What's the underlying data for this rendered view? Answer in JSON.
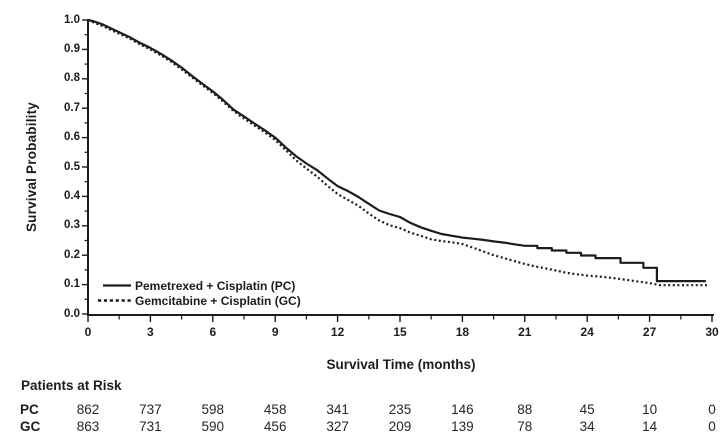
{
  "colors": {
    "ink": "#1c1c1c",
    "background": "#ffffff"
  },
  "chart_data": {
    "type": "line",
    "subtype": "kaplan-meier-survival-curve",
    "title": "",
    "xlabel": "Survival Time (months)",
    "ylabel": "Survival Probability",
    "xlim": [
      0,
      30
    ],
    "ylim": [
      0.0,
      1.0
    ],
    "grid": false,
    "legend_position": "inside-lower-left",
    "x_major_ticks": [
      0,
      3,
      6,
      9,
      12,
      15,
      18,
      21,
      24,
      27,
      30
    ],
    "x_minor_tick_step": 1.5,
    "y_major_tick_labels": [
      "1.0",
      "0.9",
      "0.8",
      "0.7",
      "0.6",
      "0.5",
      "0.4",
      "0.3",
      "0.2",
      "0.1",
      "0.0"
    ],
    "y_minor_tick_step": 0.05,
    "series": [
      {
        "name": "Pemetrexed + Cisplatin (PC)",
        "line_style": "solid",
        "color": "#1c1c1c",
        "points": [
          [
            0,
            1.0
          ],
          [
            0.3,
            0.995
          ],
          [
            0.7,
            0.985
          ],
          [
            1,
            0.975
          ],
          [
            1.5,
            0.958
          ],
          [
            2,
            0.942
          ],
          [
            2.5,
            0.922
          ],
          [
            3,
            0.905
          ],
          [
            3.5,
            0.885
          ],
          [
            4,
            0.863
          ],
          [
            4.5,
            0.838
          ],
          [
            5,
            0.81
          ],
          [
            5.5,
            0.783
          ],
          [
            6,
            0.757
          ],
          [
            6.5,
            0.728
          ],
          [
            7,
            0.695
          ],
          [
            7.5,
            0.672
          ],
          [
            8,
            0.648
          ],
          [
            8.5,
            0.625
          ],
          [
            9,
            0.6
          ],
          [
            9.5,
            0.567
          ],
          [
            10,
            0.537
          ],
          [
            10.5,
            0.512
          ],
          [
            11,
            0.49
          ],
          [
            11.5,
            0.462
          ],
          [
            12,
            0.435
          ],
          [
            12.5,
            0.418
          ],
          [
            13,
            0.398
          ],
          [
            13.5,
            0.375
          ],
          [
            14,
            0.352
          ],
          [
            14.5,
            0.34
          ],
          [
            15,
            0.33
          ],
          [
            15.5,
            0.31
          ],
          [
            16,
            0.295
          ],
          [
            16.5,
            0.283
          ],
          [
            17,
            0.272
          ],
          [
            17.5,
            0.266
          ],
          [
            18,
            0.26
          ],
          [
            18.5,
            0.256
          ],
          [
            19,
            0.252
          ],
          [
            19.5,
            0.247
          ],
          [
            20,
            0.243
          ],
          [
            20.5,
            0.237
          ],
          [
            21,
            0.232
          ],
          [
            21.6,
            0.232
          ],
          [
            21.6,
            0.224
          ],
          [
            22.3,
            0.224
          ],
          [
            22.3,
            0.216
          ],
          [
            23,
            0.216
          ],
          [
            23,
            0.208
          ],
          [
            23.7,
            0.208
          ],
          [
            23.7,
            0.199
          ],
          [
            24.4,
            0.199
          ],
          [
            24.4,
            0.19
          ],
          [
            25.6,
            0.19
          ],
          [
            25.6,
            0.174
          ],
          [
            26.7,
            0.174
          ],
          [
            26.7,
            0.157
          ],
          [
            27.35,
            0.157
          ],
          [
            27.35,
            0.112
          ],
          [
            29.7,
            0.112
          ]
        ]
      },
      {
        "name": "Gemcitabine + Cisplatin (GC)",
        "line_style": "dotted",
        "color": "#1c1c1c",
        "points": [
          [
            0,
            1.0
          ],
          [
            0.5,
            0.985
          ],
          [
            1,
            0.97
          ],
          [
            1.5,
            0.953
          ],
          [
            2,
            0.937
          ],
          [
            2.5,
            0.917
          ],
          [
            3,
            0.9
          ],
          [
            3.5,
            0.88
          ],
          [
            4,
            0.858
          ],
          [
            4.5,
            0.832
          ],
          [
            5,
            0.805
          ],
          [
            5.5,
            0.778
          ],
          [
            6,
            0.752
          ],
          [
            6.5,
            0.722
          ],
          [
            7,
            0.69
          ],
          [
            7.5,
            0.665
          ],
          [
            8,
            0.641
          ],
          [
            8.5,
            0.618
          ],
          [
            9,
            0.592
          ],
          [
            9.5,
            0.558
          ],
          [
            10,
            0.523
          ],
          [
            10.5,
            0.495
          ],
          [
            11,
            0.468
          ],
          [
            11.5,
            0.437
          ],
          [
            12,
            0.408
          ],
          [
            12.5,
            0.388
          ],
          [
            13,
            0.368
          ],
          [
            13.5,
            0.342
          ],
          [
            14,
            0.318
          ],
          [
            14.5,
            0.302
          ],
          [
            15,
            0.292
          ],
          [
            15.5,
            0.277
          ],
          [
            16,
            0.266
          ],
          [
            16.5,
            0.254
          ],
          [
            17,
            0.248
          ],
          [
            17.5,
            0.244
          ],
          [
            18,
            0.238
          ],
          [
            18.5,
            0.226
          ],
          [
            19,
            0.213
          ],
          [
            19.5,
            0.2
          ],
          [
            20,
            0.19
          ],
          [
            20.5,
            0.18
          ],
          [
            21,
            0.17
          ],
          [
            21.5,
            0.162
          ],
          [
            22,
            0.155
          ],
          [
            22.5,
            0.148
          ],
          [
            23,
            0.14
          ],
          [
            23.5,
            0.135
          ],
          [
            24,
            0.131
          ],
          [
            24.5,
            0.128
          ],
          [
            25,
            0.124
          ],
          [
            25.5,
            0.12
          ],
          [
            26,
            0.115
          ],
          [
            26.5,
            0.11
          ],
          [
            27,
            0.105
          ],
          [
            27.5,
            0.098
          ],
          [
            29.8,
            0.098
          ]
        ]
      }
    ],
    "at_risk": {
      "title": "Patients at Risk",
      "time_points": [
        0,
        3,
        6,
        9,
        12,
        15,
        18,
        21,
        24,
        27,
        30
      ],
      "rows": [
        {
          "label": "PC",
          "counts": [
            862,
            737,
            598,
            458,
            341,
            235,
            146,
            88,
            45,
            10,
            0
          ]
        },
        {
          "label": "GC",
          "counts": [
            863,
            731,
            590,
            456,
            327,
            209,
            139,
            78,
            34,
            14,
            0
          ]
        }
      ]
    }
  }
}
